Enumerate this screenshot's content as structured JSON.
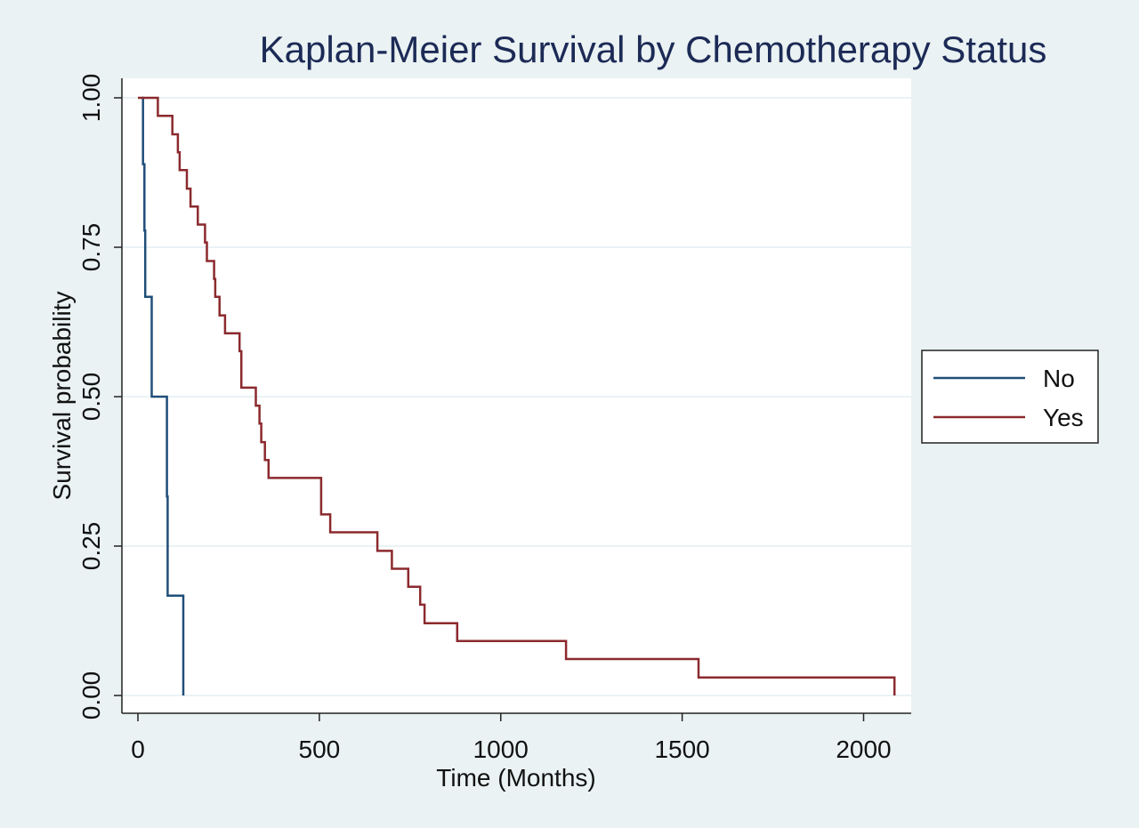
{
  "chart_data": {
    "type": "line",
    "subtype": "kaplan-meier-step",
    "title": "Kaplan-Meier Survival by Chemotherapy Status",
    "xlabel": "Time (Months)",
    "ylabel": "Survival probability",
    "xlim": [
      0,
      2100
    ],
    "ylim": [
      0,
      1
    ],
    "xticks": [
      0,
      500,
      1000,
      1500,
      2000
    ],
    "xtick_labels": [
      "0",
      "500",
      "1000",
      "1500",
      "2000"
    ],
    "yticks": [
      0,
      0.25,
      0.5,
      0.75,
      1.0
    ],
    "ytick_labels": [
      "0.00",
      "0.25",
      "0.50",
      "0.75",
      "1.00"
    ],
    "grid": true,
    "legend_position": "right",
    "series": [
      {
        "name": "No",
        "color": "#1f4e79",
        "points": [
          [
            10,
            1.0
          ],
          [
            14,
            1.0
          ],
          [
            14,
            0.889
          ],
          [
            18,
            0.889
          ],
          [
            18,
            0.778
          ],
          [
            20,
            0.778
          ],
          [
            20,
            0.667
          ],
          [
            38,
            0.667
          ],
          [
            38,
            0.5
          ],
          [
            80,
            0.5
          ],
          [
            80,
            0.333
          ],
          [
            82,
            0.333
          ],
          [
            82,
            0.167
          ],
          [
            125,
            0.167
          ],
          [
            125,
            0.0
          ]
        ]
      },
      {
        "name": "Yes",
        "color": "#8b2a2e",
        "points": [
          [
            0,
            1.0
          ],
          [
            55,
            1.0
          ],
          [
            55,
            0.97
          ],
          [
            95,
            0.97
          ],
          [
            95,
            0.939
          ],
          [
            110,
            0.939
          ],
          [
            110,
            0.909
          ],
          [
            115,
            0.909
          ],
          [
            115,
            0.879
          ],
          [
            135,
            0.879
          ],
          [
            135,
            0.848
          ],
          [
            145,
            0.848
          ],
          [
            145,
            0.818
          ],
          [
            165,
            0.818
          ],
          [
            165,
            0.788
          ],
          [
            185,
            0.788
          ],
          [
            185,
            0.758
          ],
          [
            190,
            0.758
          ],
          [
            190,
            0.727
          ],
          [
            210,
            0.727
          ],
          [
            210,
            0.697
          ],
          [
            213,
            0.697
          ],
          [
            213,
            0.667
          ],
          [
            225,
            0.667
          ],
          [
            225,
            0.636
          ],
          [
            240,
            0.636
          ],
          [
            240,
            0.606
          ],
          [
            280,
            0.606
          ],
          [
            280,
            0.576
          ],
          [
            285,
            0.576
          ],
          [
            285,
            0.515
          ],
          [
            325,
            0.515
          ],
          [
            325,
            0.485
          ],
          [
            335,
            0.485
          ],
          [
            335,
            0.455
          ],
          [
            340,
            0.455
          ],
          [
            340,
            0.424
          ],
          [
            350,
            0.424
          ],
          [
            350,
            0.394
          ],
          [
            360,
            0.394
          ],
          [
            360,
            0.364
          ],
          [
            505,
            0.364
          ],
          [
            505,
            0.303
          ],
          [
            530,
            0.303
          ],
          [
            530,
            0.273
          ],
          [
            660,
            0.273
          ],
          [
            660,
            0.242
          ],
          [
            700,
            0.242
          ],
          [
            700,
            0.212
          ],
          [
            745,
            0.212
          ],
          [
            745,
            0.182
          ],
          [
            778,
            0.182
          ],
          [
            778,
            0.152
          ],
          [
            790,
            0.152
          ],
          [
            790,
            0.121
          ],
          [
            880,
            0.121
          ],
          [
            880,
            0.091
          ],
          [
            1180,
            0.091
          ],
          [
            1180,
            0.061
          ],
          [
            1545,
            0.061
          ],
          [
            1545,
            0.03
          ],
          [
            2085,
            0.03
          ],
          [
            2085,
            0.0
          ]
        ]
      }
    ]
  }
}
